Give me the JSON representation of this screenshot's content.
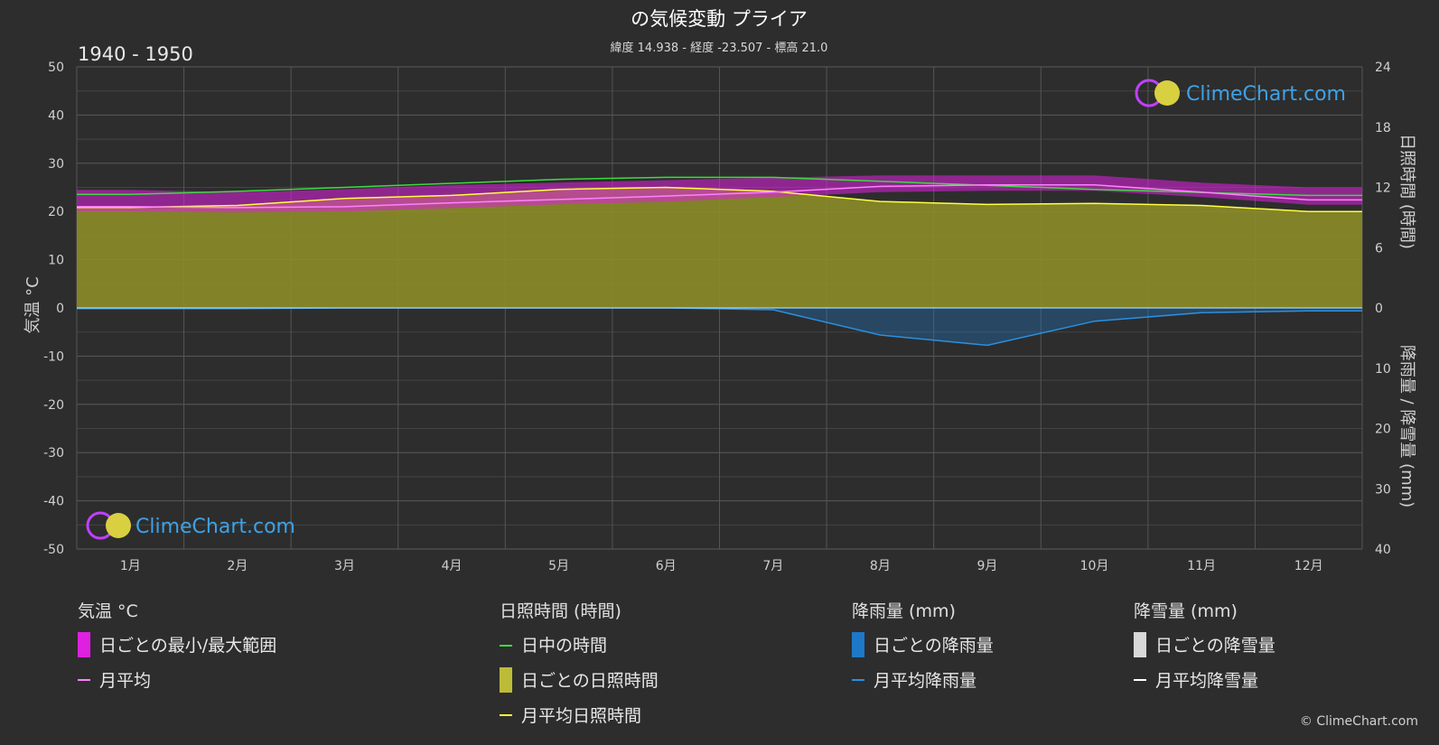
{
  "header": {
    "title": "の気候変動 プライア",
    "subtitle": "緯度 14.938 - 経度 -23.507 - 標高 21.0",
    "period": "1940 - 1950"
  },
  "axes": {
    "left_label": "気温 °C",
    "right_top_label": "日照時間 (時間)",
    "right_bottom_label": "降雨量 / 降雪量 (mm)"
  },
  "brand": {
    "name": "ClimeChart.com",
    "copyright": "© ClimeChart.com"
  },
  "legend": {
    "temperature": {
      "heading": "気温 °C",
      "range": "日ごとの最小/最大範囲",
      "avg": "月平均"
    },
    "sunshine": {
      "heading": "日照時間 (時間)",
      "daylight": "日中の時間",
      "daily": "日ごとの日照時間",
      "avg": "月平均日照時間"
    },
    "rain": {
      "heading": "降雨量 (mm)",
      "daily": "日ごとの降雨量",
      "avg": "月平均降雨量"
    },
    "snow": {
      "heading": "降雪量 (mm)",
      "daily": "日ごとの降雪量",
      "avg": "月平均降雪量"
    }
  },
  "colors": {
    "background": "#2d2d2d",
    "temp_range": "#e020e0",
    "temp_avg": "#ff80ff",
    "daylight": "#3cdc3c",
    "sunshine_fill": "#8c8c28",
    "sunshine_avg": "#ffff40",
    "rain": "#1e78c8",
    "rain_avg": "#2a90e0",
    "snow": "#ffffff"
  },
  "chart_data": {
    "type": "line",
    "categories": [
      "1月",
      "2月",
      "3月",
      "4月",
      "5月",
      "6月",
      "7月",
      "8月",
      "9月",
      "10月",
      "11月",
      "12月"
    ],
    "y_left": {
      "range": [
        -50,
        50
      ],
      "ticks": [
        50,
        40,
        30,
        20,
        10,
        0,
        -10,
        -20,
        -30,
        -40,
        -50
      ]
    },
    "y_right_sunshine": {
      "range": [
        0,
        24
      ],
      "ticks": [
        24,
        18,
        12,
        6,
        0
      ]
    },
    "y_right_precip": {
      "range": [
        0,
        40
      ],
      "ticks": [
        10,
        20,
        30,
        40
      ]
    },
    "series": [
      {
        "name": "日中の時間",
        "axis": "sunshine_hours",
        "values": [
          11.3,
          11.6,
          12.0,
          12.4,
          12.8,
          13.0,
          13.0,
          12.6,
          12.2,
          11.8,
          11.5,
          11.2
        ]
      },
      {
        "name": "月平均日照時間",
        "axis": "sunshine_hours",
        "values": [
          10.0,
          10.2,
          10.9,
          11.2,
          11.8,
          12.0,
          11.6,
          10.6,
          10.3,
          10.4,
          10.2,
          9.6
        ]
      },
      {
        "name": "月平均",
        "axis": "temperature_c",
        "values": [
          21.0,
          20.8,
          21.0,
          21.8,
          22.5,
          23.2,
          24.0,
          25.2,
          25.5,
          25.5,
          24.0,
          22.4
        ]
      },
      {
        "name": "日ごとの最小/最大範囲",
        "axis": "temperature_c",
        "min": [
          20.0,
          19.8,
          20.0,
          20.7,
          21.5,
          22.0,
          23.0,
          24.0,
          24.3,
          24.3,
          23.0,
          21.4
        ],
        "max": [
          24.5,
          24.0,
          24.6,
          25.5,
          26.0,
          26.5,
          27.0,
          27.5,
          27.5,
          27.5,
          26.0,
          25.0
        ]
      },
      {
        "name": "月平均降雨量",
        "axis": "precipitation_mm",
        "values": [
          0.1,
          0.1,
          0.0,
          0.0,
          0.0,
          0.0,
          0.3,
          4.5,
          6.2,
          2.2,
          0.8,
          0.5
        ]
      },
      {
        "name": "月平均降雪量",
        "axis": "precipitation_mm",
        "values": [
          0,
          0,
          0,
          0,
          0,
          0,
          0,
          0,
          0,
          0,
          0,
          0
        ]
      }
    ]
  }
}
